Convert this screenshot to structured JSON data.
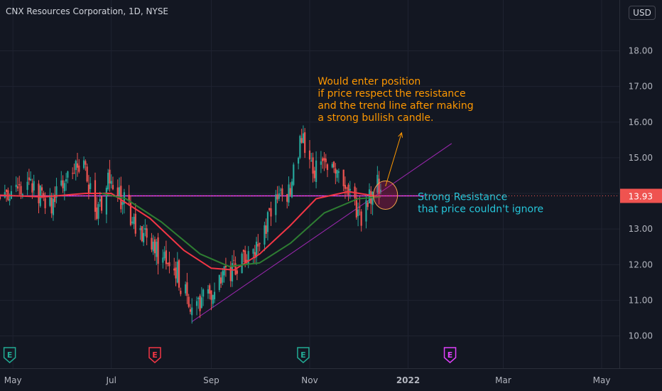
{
  "chart_data": {
    "type": "candlestick",
    "title": "CNX Resources Corporation, 1D, NYSE",
    "currency_label": "USD",
    "last_price": 13.93,
    "last_price_label": "13.93",
    "y_ticks": [
      "10.00",
      "11.00",
      "12.00",
      "13.00",
      "14.00",
      "15.00",
      "16.00",
      "17.00",
      "18.00"
    ],
    "ylim": [
      9.5,
      18.5
    ],
    "x_ticks": [
      "May",
      "Jul",
      "Sep",
      "Nov",
      "2022",
      "Mar",
      "May"
    ],
    "x_ticks_bold": [
      false,
      false,
      false,
      false,
      true,
      false,
      false
    ],
    "x_domain": [
      "2021-04-23",
      "2022-05-12"
    ],
    "x_tick_dates": [
      "2021-05-01",
      "2021-07-01",
      "2021-09-01",
      "2021-11-01",
      "2022-01-01",
      "2022-03-01",
      "2022-05-01"
    ],
    "price_path": [
      {
        "date": "2021-04-23",
        "close": 13.9
      },
      {
        "date": "2021-05-10",
        "close": 14.2
      },
      {
        "date": "2021-05-24",
        "close": 13.7
      },
      {
        "date": "2021-06-08",
        "close": 14.8
      },
      {
        "date": "2021-06-15",
        "close": 14.6
      },
      {
        "date": "2021-06-22",
        "close": 13.2
      },
      {
        "date": "2021-06-30",
        "close": 14.4
      },
      {
        "date": "2021-07-12",
        "close": 13.5
      },
      {
        "date": "2021-07-26",
        "close": 12.4
      },
      {
        "date": "2021-08-09",
        "close": 12.0
      },
      {
        "date": "2021-08-20",
        "close": 10.6
      },
      {
        "date": "2021-08-30",
        "close": 11.2
      },
      {
        "date": "2021-09-08",
        "close": 11.8
      },
      {
        "date": "2021-09-20",
        "close": 12.0
      },
      {
        "date": "2021-10-01",
        "close": 12.7
      },
      {
        "date": "2021-10-12",
        "close": 13.8
      },
      {
        "date": "2021-10-20",
        "close": 14.1
      },
      {
        "date": "2021-10-27",
        "close": 15.6
      },
      {
        "date": "2021-11-05",
        "close": 14.6
      },
      {
        "date": "2021-11-15",
        "close": 14.9
      },
      {
        "date": "2021-11-24",
        "close": 14.1
      },
      {
        "date": "2021-12-03",
        "close": 13.4
      },
      {
        "date": "2021-12-06",
        "close": 13.8
      },
      {
        "date": "2021-12-15",
        "close": 14.4
      }
    ],
    "moving_averages": [
      {
        "color": "#f23645",
        "points": [
          {
            "date": "2021-04-23",
            "value": 13.95
          },
          {
            "date": "2021-05-20",
            "value": 13.9
          },
          {
            "date": "2021-06-15",
            "value": 14.0
          },
          {
            "date": "2021-07-01",
            "value": 14.0
          },
          {
            "date": "2021-07-25",
            "value": 13.3
          },
          {
            "date": "2021-08-15",
            "value": 12.4
          },
          {
            "date": "2021-09-01",
            "value": 11.9
          },
          {
            "date": "2021-09-15",
            "value": 11.85
          },
          {
            "date": "2021-10-01",
            "value": 12.3
          },
          {
            "date": "2021-10-20",
            "value": 13.1
          },
          {
            "date": "2021-11-05",
            "value": 13.85
          },
          {
            "date": "2021-11-25",
            "value": 14.05
          },
          {
            "date": "2021-12-15",
            "value": 13.9
          }
        ]
      },
      {
        "color": "#2e7d32",
        "points": [
          {
            "date": "2021-06-25",
            "value": 14.0
          },
          {
            "date": "2021-07-10",
            "value": 13.85
          },
          {
            "date": "2021-08-01",
            "value": 13.2
          },
          {
            "date": "2021-08-25",
            "value": 12.3
          },
          {
            "date": "2021-09-12",
            "value": 11.95
          },
          {
            "date": "2021-10-01",
            "value": 12.05
          },
          {
            "date": "2021-10-20",
            "value": 12.6
          },
          {
            "date": "2021-11-10",
            "value": 13.45
          },
          {
            "date": "2021-12-01",
            "value": 13.85
          },
          {
            "date": "2021-12-15",
            "value": 13.9
          }
        ]
      }
    ],
    "earnings_markers": [
      {
        "date": "2021-04-29",
        "label": "E",
        "color": "#22ab94"
      },
      {
        "date": "2021-07-28",
        "label": "E",
        "color": "#f23645"
      },
      {
        "date": "2021-10-28",
        "label": "E",
        "color": "#22ab94"
      },
      {
        "date": "2022-01-27",
        "label": "E",
        "color": "#e040fb"
      }
    ],
    "annotations": {
      "resistance": {
        "price": 13.93,
        "date_from": "2021-04-23",
        "date_to": "2022-01-11",
        "color": "#e040fb"
      },
      "trend_line": {
        "from": {
          "date": "2021-08-20",
          "price": 10.4
        },
        "to": {
          "date": "2022-01-28",
          "price": 15.4
        },
        "color": "#9c27b0"
      },
      "entry_circle": {
        "date": "2021-12-18",
        "price": 13.95,
        "color": "#e91e63"
      },
      "arrow": {
        "from": {
          "date": "2021-12-18",
          "price": 14.2
        },
        "to": {
          "date": "2021-12-28",
          "price": 15.7
        },
        "color": "#ff9800"
      },
      "note_orange": {
        "date": "2021-11-06",
        "price": 17.05,
        "color": "#ff9800",
        "lines": [
          "Would enter position",
          "if price respect the resistance",
          "and the trend line after making",
          "a strong bullish candle."
        ]
      },
      "note_blue": {
        "date": "2022-01-07",
        "price": 13.93,
        "color": "#26c6da",
        "lines": [
          "Strong Resistance",
          "that price couldn't ignore"
        ]
      }
    }
  }
}
